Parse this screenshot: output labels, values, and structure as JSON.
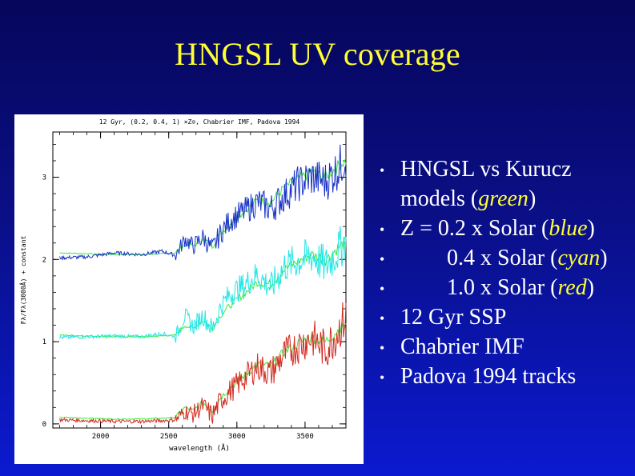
{
  "slide": {
    "title": "HNGSL UV coverage",
    "colors": {
      "title": "#ffff33",
      "highlight": "#ffff33",
      "text": "#ffffff"
    }
  },
  "bullets": [
    {
      "pre": "HNGSL vs Kurucz models (",
      "hl": "green",
      "post": ")"
    },
    {
      "pre": "Z = 0.2 x Solar (",
      "hl": "blue",
      "post": ")"
    },
    {
      "pre": "0.4 x Solar (",
      "hl": "cyan",
      "post": ")"
    },
    {
      "pre": "1.0 x Solar (",
      "hl": "red",
      "post": ")"
    },
    {
      "pre": "12 Gyr SSP",
      "hl": "",
      "post": ""
    },
    {
      "pre": "Chabrier IMF",
      "hl": "",
      "post": ""
    },
    {
      "pre": "Padova 1994 tracks",
      "hl": "",
      "post": ""
    }
  ],
  "chart_data": {
    "type": "line",
    "title": "12 Gyr, (0.2, 0.4, 1) ×Z⊙, Chabrier IMF, Padova 1994",
    "xlabel": "wavelength (Å)",
    "ylabel": "Fλ/Fλ(3000Å) + constant",
    "xlim": [
      1650,
      3800
    ],
    "ylim": [
      -0.05,
      3.55
    ],
    "xticks": [
      2000,
      2500,
      3000,
      3500
    ],
    "yticks": [
      0,
      1,
      2,
      3
    ],
    "series": [
      {
        "color": "#1a33c8",
        "offset": 2.0,
        "x": [
          1700,
          1900,
          2100,
          2300,
          2450,
          2550,
          2620,
          2680,
          2750,
          2820,
          2880,
          2950,
          3050,
          3150,
          3250,
          3350,
          3450,
          3550,
          3650,
          3750,
          3800
        ],
        "y": [
          2.02,
          2.03,
          2.08,
          2.06,
          2.1,
          2.05,
          2.25,
          2.16,
          2.27,
          2.12,
          2.32,
          2.48,
          2.58,
          2.7,
          2.62,
          2.78,
          2.92,
          3.0,
          2.95,
          3.12,
          3.25
        ]
      },
      {
        "color": "#22e6e6",
        "offset": 1.0,
        "x": [
          1700,
          1900,
          2100,
          2300,
          2450,
          2550,
          2620,
          2680,
          2750,
          2820,
          2880,
          2950,
          3050,
          3150,
          3250,
          3350,
          3450,
          3550,
          3650,
          3750,
          3800
        ],
        "y": [
          1.05,
          1.06,
          1.07,
          1.06,
          1.1,
          1.06,
          1.32,
          1.18,
          1.32,
          1.15,
          1.42,
          1.58,
          1.68,
          1.82,
          1.65,
          1.92,
          1.98,
          2.05,
          1.92,
          2.12,
          2.26
        ]
      },
      {
        "color": "#d42a20",
        "offset": 0.0,
        "x": [
          1700,
          1900,
          2100,
          2300,
          2450,
          2550,
          2620,
          2680,
          2750,
          2820,
          2880,
          2950,
          3050,
          3150,
          3250,
          3350,
          3450,
          3550,
          3650,
          3750,
          3800
        ],
        "y": [
          0.05,
          0.04,
          0.03,
          0.03,
          0.04,
          0.05,
          0.15,
          0.12,
          0.22,
          0.1,
          0.28,
          0.4,
          0.55,
          0.7,
          0.62,
          0.85,
          0.95,
          1.05,
          0.9,
          1.15,
          1.3
        ]
      },
      {
        "color": "#33ee33",
        "offset": 0.0,
        "model": true,
        "x": [
          1700,
          1900,
          2100,
          2300,
          2450,
          2550,
          2620,
          2680,
          2750,
          2820,
          2880,
          2950,
          3050,
          3150,
          3250,
          3350,
          3450,
          3550,
          3650,
          3750,
          3800
        ],
        "y": [
          0.08,
          0.07,
          0.06,
          0.06,
          0.07,
          0.08,
          0.2,
          0.16,
          0.26,
          0.16,
          0.32,
          0.44,
          0.58,
          0.72,
          0.7,
          0.88,
          0.98,
          1.06,
          1.0,
          1.15,
          1.2
        ]
      }
    ]
  }
}
